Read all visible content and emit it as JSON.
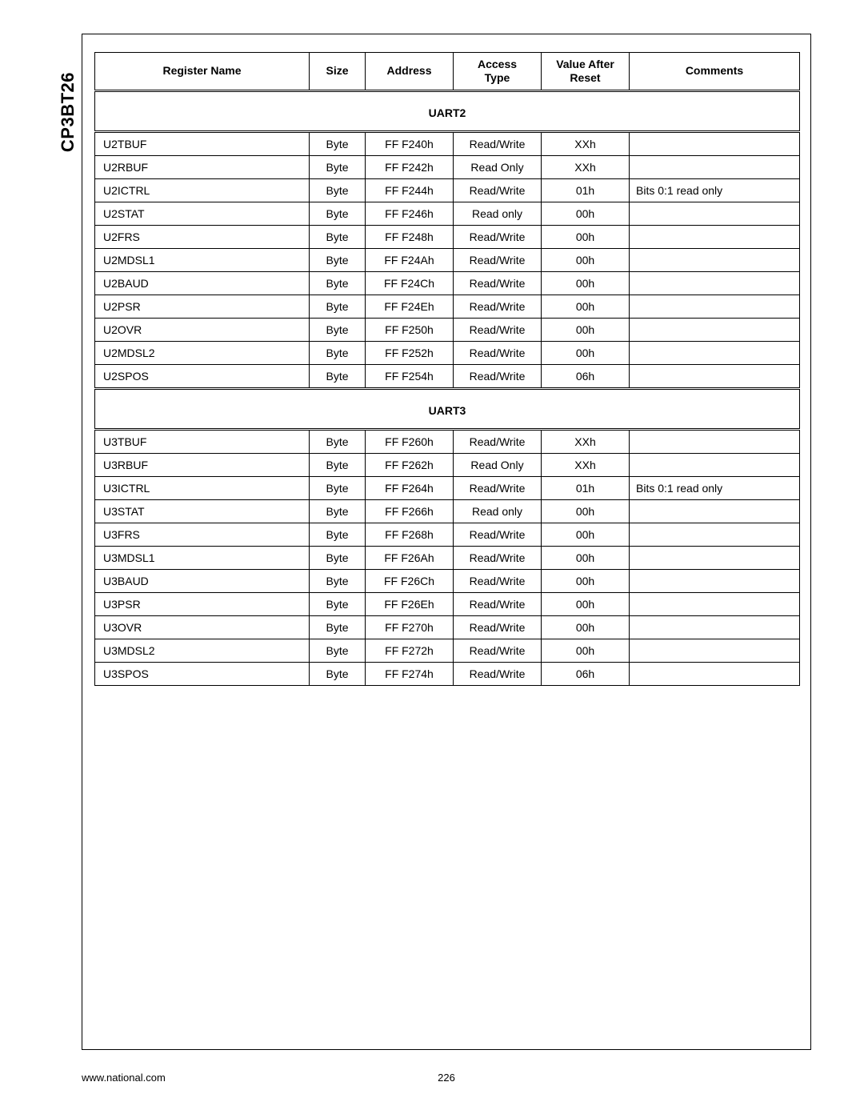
{
  "sideLabel": "CP3BT26",
  "footer": {
    "url": "www.national.com",
    "page": "226"
  },
  "columns": [
    "Register Name",
    "Size",
    "Address",
    "Access Type",
    "Value After Reset",
    "Comments"
  ],
  "sections": [
    {
      "title": "UART2",
      "rows": [
        {
          "name": "U2TBUF",
          "size": "Byte",
          "addr": "FF F240h",
          "acc": "Read/Write",
          "val": "XXh",
          "com": ""
        },
        {
          "name": "U2RBUF",
          "size": "Byte",
          "addr": "FF F242h",
          "acc": "Read Only",
          "val": "XXh",
          "com": ""
        },
        {
          "name": "U2ICTRL",
          "size": "Byte",
          "addr": "FF F244h",
          "acc": "Read/Write",
          "val": "01h",
          "com": "Bits 0:1 read only"
        },
        {
          "name": "U2STAT",
          "size": "Byte",
          "addr": "FF F246h",
          "acc": "Read only",
          "val": "00h",
          "com": ""
        },
        {
          "name": "U2FRS",
          "size": "Byte",
          "addr": "FF F248h",
          "acc": "Read/Write",
          "val": "00h",
          "com": ""
        },
        {
          "name": "U2MDSL1",
          "size": "Byte",
          "addr": "FF F24Ah",
          "acc": "Read/Write",
          "val": "00h",
          "com": ""
        },
        {
          "name": "U2BAUD",
          "size": "Byte",
          "addr": "FF F24Ch",
          "acc": "Read/Write",
          "val": "00h",
          "com": ""
        },
        {
          "name": "U2PSR",
          "size": "Byte",
          "addr": "FF F24Eh",
          "acc": "Read/Write",
          "val": "00h",
          "com": ""
        },
        {
          "name": "U2OVR",
          "size": "Byte",
          "addr": "FF F250h",
          "acc": "Read/Write",
          "val": "00h",
          "com": ""
        },
        {
          "name": "U2MDSL2",
          "size": "Byte",
          "addr": "FF F252h",
          "acc": "Read/Write",
          "val": "00h",
          "com": ""
        },
        {
          "name": "U2SPOS",
          "size": "Byte",
          "addr": "FF F254h",
          "acc": "Read/Write",
          "val": "06h",
          "com": ""
        }
      ]
    },
    {
      "title": "UART3",
      "rows": [
        {
          "name": "U3TBUF",
          "size": "Byte",
          "addr": "FF F260h",
          "acc": "Read/Write",
          "val": "XXh",
          "com": ""
        },
        {
          "name": "U3RBUF",
          "size": "Byte",
          "addr": "FF F262h",
          "acc": "Read Only",
          "val": "XXh",
          "com": ""
        },
        {
          "name": "U3ICTRL",
          "size": "Byte",
          "addr": "FF F264h",
          "acc": "Read/Write",
          "val": "01h",
          "com": "Bits 0:1 read only"
        },
        {
          "name": "U3STAT",
          "size": "Byte",
          "addr": "FF F266h",
          "acc": "Read only",
          "val": "00h",
          "com": ""
        },
        {
          "name": "U3FRS",
          "size": "Byte",
          "addr": "FF F268h",
          "acc": "Read/Write",
          "val": "00h",
          "com": ""
        },
        {
          "name": "U3MDSL1",
          "size": "Byte",
          "addr": "FF F26Ah",
          "acc": "Read/Write",
          "val": "00h",
          "com": ""
        },
        {
          "name": "U3BAUD",
          "size": "Byte",
          "addr": "FF F26Ch",
          "acc": "Read/Write",
          "val": "00h",
          "com": ""
        },
        {
          "name": "U3PSR",
          "size": "Byte",
          "addr": "FF F26Eh",
          "acc": "Read/Write",
          "val": "00h",
          "com": ""
        },
        {
          "name": "U3OVR",
          "size": "Byte",
          "addr": "FF F270h",
          "acc": "Read/Write",
          "val": "00h",
          "com": ""
        },
        {
          "name": "U3MDSL2",
          "size": "Byte",
          "addr": "FF F272h",
          "acc": "Read/Write",
          "val": "00h",
          "com": ""
        },
        {
          "name": "U3SPOS",
          "size": "Byte",
          "addr": "FF F274h",
          "acc": "Read/Write",
          "val": "06h",
          "com": ""
        }
      ]
    }
  ]
}
